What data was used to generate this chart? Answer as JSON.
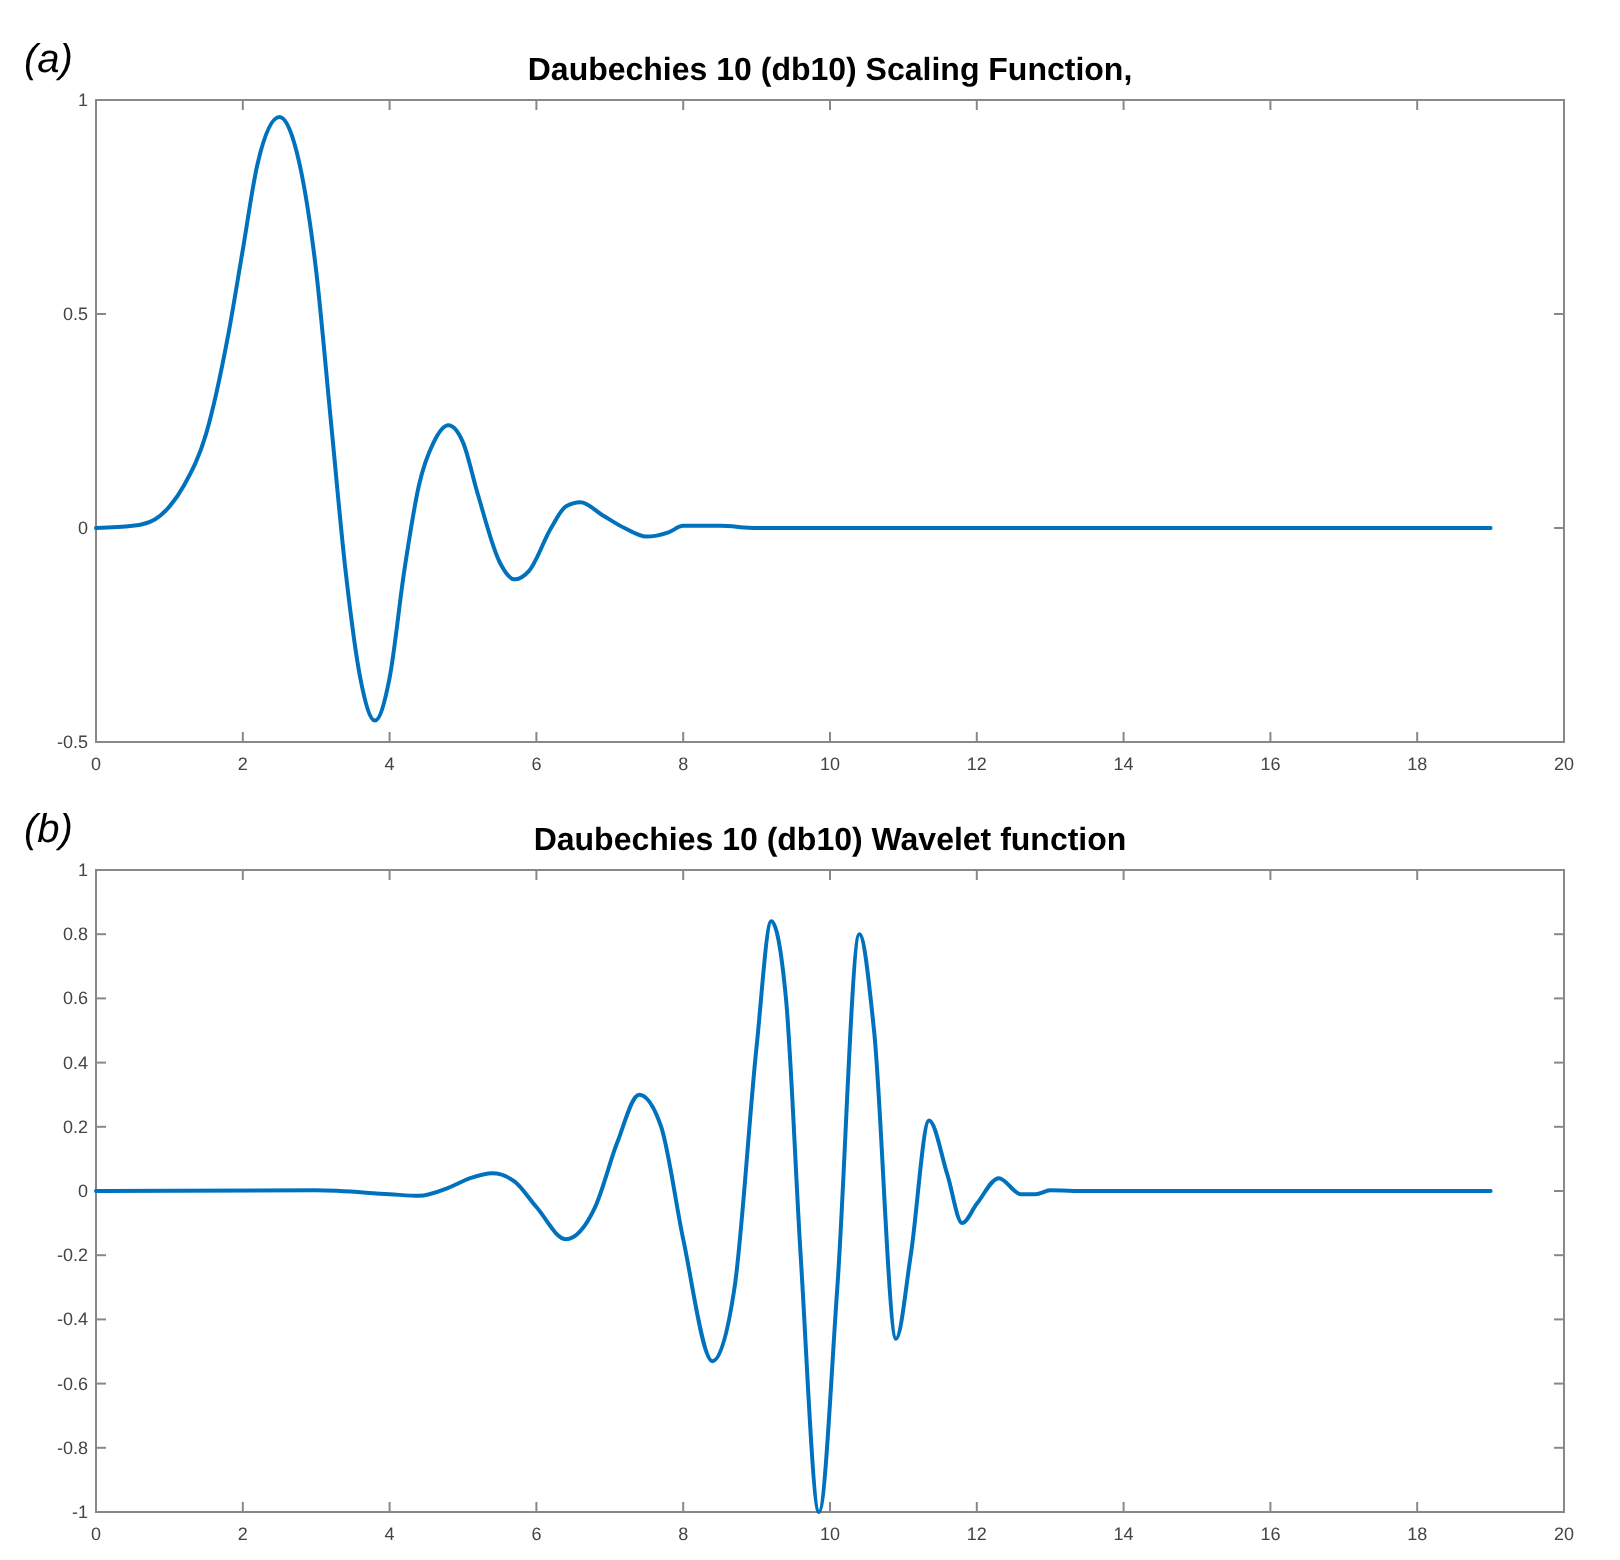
{
  "chart_data": [
    {
      "type": "line",
      "title": "Daubechies 10 (db10) Scaling Function,",
      "annotations": [
        "(a)"
      ],
      "xlim": [
        0,
        20
      ],
      "xticks": [
        0,
        2,
        4,
        6,
        8,
        10,
        12,
        14,
        16,
        18,
        20
      ],
      "ylim": [
        -0.5,
        1
      ],
      "yticks": [
        -0.5,
        0,
        0.5,
        1
      ],
      "grid": false,
      "marker": "none",
      "line_style": "solid",
      "series": [
        {
          "color": "#0072bd",
          "x": [
            0,
            0.5,
            0.8,
            1.0,
            1.2,
            1.5,
            1.8,
            2.0,
            2.2,
            2.5,
            2.7,
            3.0,
            3.2,
            3.4,
            3.6,
            3.8,
            4.0,
            4.2,
            4.4,
            4.6,
            4.8,
            5.0,
            5.2,
            5.5,
            5.7,
            5.9,
            6.2,
            6.4,
            6.6,
            6.9,
            7.2,
            7.5,
            7.8,
            8.0,
            8.5,
            9.0,
            19
          ],
          "values": [
            0,
            0.005,
            0.02,
            0.05,
            0.1,
            0.22,
            0.45,
            0.65,
            0.85,
            0.96,
            0.9,
            0.6,
            0.25,
            -0.1,
            -0.35,
            -0.45,
            -0.35,
            -0.1,
            0.1,
            0.2,
            0.24,
            0.2,
            0.08,
            -0.08,
            -0.12,
            -0.1,
            0,
            0.05,
            0.06,
            0.03,
            0,
            -0.02,
            -0.01,
            0.005,
            0.005,
            0,
            0
          ]
        }
      ]
    },
    {
      "type": "line",
      "title": "Daubechies 10 (db10) Wavelet function",
      "annotations": [
        "(b)"
      ],
      "xlim": [
        0,
        20
      ],
      "xticks": [
        0,
        2,
        4,
        6,
        8,
        10,
        12,
        14,
        16,
        18,
        20
      ],
      "ylim": [
        -1,
        1
      ],
      "yticks": [
        -1,
        -0.8,
        -0.6,
        -0.4,
        -0.2,
        0,
        0.2,
        0.4,
        0.6,
        0.8,
        1
      ],
      "grid": false,
      "marker": "none",
      "line_style": "solid",
      "series": [
        {
          "color": "#0072bd",
          "x": [
            0,
            3,
            4,
            4.4,
            4.8,
            5.1,
            5.4,
            5.7,
            6.0,
            6.4,
            6.8,
            7.1,
            7.4,
            7.7,
            8.0,
            8.4,
            8.7,
            9.0,
            9.2,
            9.4,
            9.6,
            9.85,
            10.1,
            10.4,
            10.6,
            10.9,
            11.1,
            11.35,
            11.6,
            11.8,
            12.0,
            12.3,
            12.6,
            12.8,
            13.0,
            13.5,
            19
          ],
          "values": [
            0,
            0.002,
            -0.01,
            -0.015,
            0.01,
            0.04,
            0.055,
            0.03,
            -0.05,
            -0.15,
            -0.05,
            0.15,
            0.3,
            0.2,
            -0.15,
            -0.53,
            -0.3,
            0.45,
            0.84,
            0.6,
            -0.2,
            -1,
            -0.3,
            0.8,
            0.5,
            -0.46,
            -0.2,
            0.22,
            0.05,
            -0.1,
            -0.04,
            0.04,
            -0.01,
            -0.01,
            0.002,
            0,
            0
          ]
        }
      ]
    }
  ]
}
